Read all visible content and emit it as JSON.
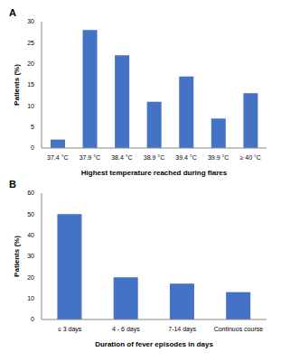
{
  "chart_data": [
    {
      "type": "bar",
      "title": "A",
      "x_label": "Highest temperature reached during flares",
      "y_label": "Patients (%)",
      "categories": [
        "37.4 °C",
        "37.9 °C",
        "38.4 °C",
        "38.9 °C",
        "39.4 °C",
        "39.9 °C",
        "≥ 40 °C"
      ],
      "values": [
        2,
        28,
        22,
        11,
        17,
        7,
        13
      ],
      "color": "#4472c4",
      "ylim": [
        0,
        30
      ],
      "yticks": [
        0,
        5,
        10,
        15,
        20,
        25,
        30
      ],
      "grid": false
    },
    {
      "type": "bar",
      "title": "B",
      "x_label": "Duration of fever episodes in days",
      "y_label": "Patients (%)",
      "categories": [
        "≤ 3 days",
        "4 - 6 days",
        "7-14 days",
        "Continuos course"
      ],
      "values": [
        50,
        20,
        17,
        13
      ],
      "color": "#4472c4",
      "ylim": [
        0,
        60
      ],
      "yticks": [
        0,
        10,
        20,
        30,
        40,
        50,
        60
      ],
      "grid": false
    }
  ]
}
